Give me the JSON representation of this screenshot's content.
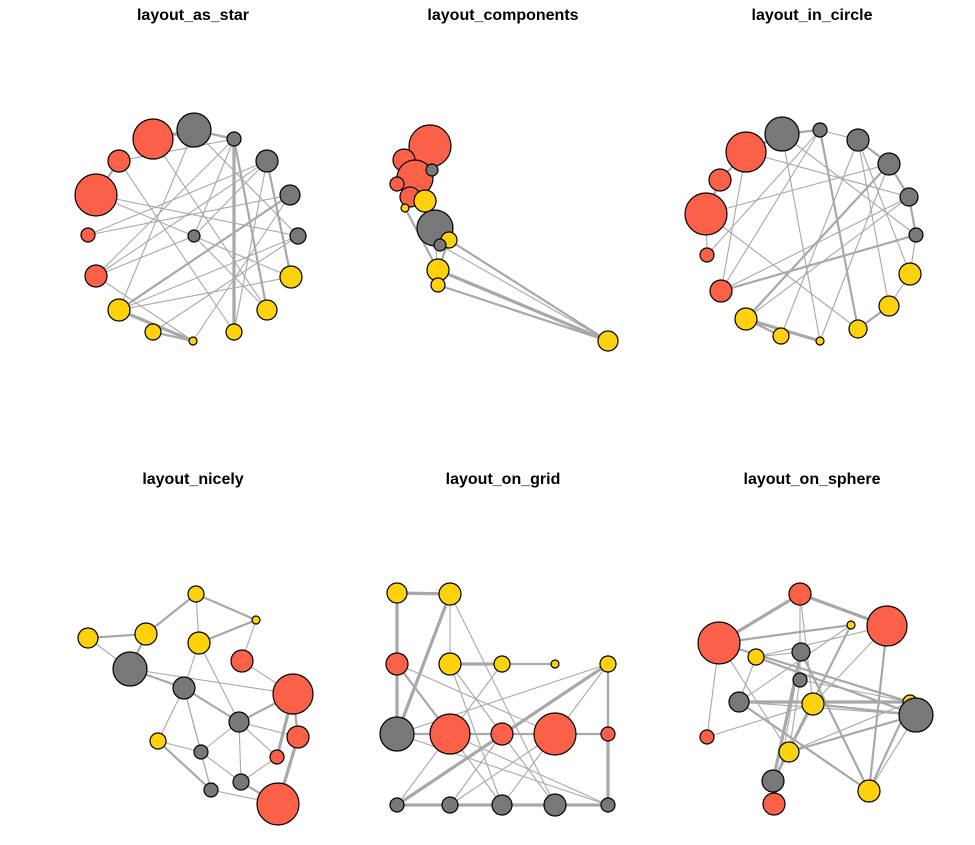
{
  "figure": {
    "type": "network-layout-grid",
    "colors": {
      "orange": "#fa6148",
      "gray": "#787878",
      "yellow": "#fdd20a",
      "edge": "#a8a8a8",
      "outline": "#000000"
    },
    "panels": [
      {
        "title": "layout_as_star"
      },
      {
        "title": "layout_components"
      },
      {
        "title": "layout_in_circle"
      },
      {
        "title": "layout_nicely"
      },
      {
        "title": "layout_on_grid"
      },
      {
        "title": "layout_on_sphere"
      }
    ]
  }
}
